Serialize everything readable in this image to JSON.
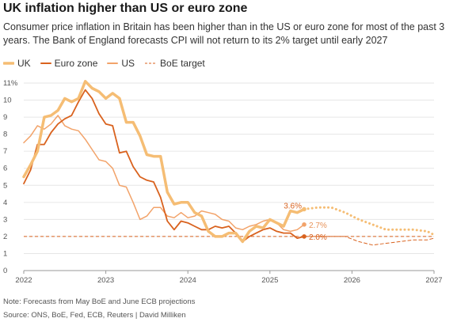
{
  "title": "UK inflation higher than US or euro zone",
  "subtitle": "Consumer price inflation in Britain has been higher than in the US or euro zone for most of the past 3 years. The Bank of England forecasts CPI will not return to its 2% target until early 2027",
  "note": "Note: Forecasts from May BoE and June ECB projections",
  "source": "Source: ONS, BoE, Fed, ECB, Reuters | David Milliken",
  "colors": {
    "uk": "#f5bd74",
    "ez": "#d9621e",
    "us": "#f2a36a",
    "target": "#d9621e",
    "grid": "#e6e6e6"
  },
  "legend": [
    {
      "label": "UK",
      "key": "uk"
    },
    {
      "label": "Euro zone",
      "key": "ez"
    },
    {
      "label": "US",
      "key": "us"
    },
    {
      "label": "BoE target",
      "key": "target"
    }
  ],
  "chart_data": {
    "type": "line",
    "xlim": [
      2022,
      2027
    ],
    "ylim": [
      0,
      11
    ],
    "x_ticks": [
      {
        "value": 2022,
        "label": "2022"
      },
      {
        "value": 2023,
        "label": "2023"
      },
      {
        "value": 2024,
        "label": "2024"
      },
      {
        "value": 2025,
        "label": "2025"
      },
      {
        "value": 2026,
        "label": "2026"
      },
      {
        "value": 2027,
        "label": "2027"
      }
    ],
    "y_ticks": [
      {
        "value": 0,
        "label": "0"
      },
      {
        "value": 1,
        "label": "1"
      },
      {
        "value": 2,
        "label": "2"
      },
      {
        "value": 3,
        "label": "3"
      },
      {
        "value": 4,
        "label": "4"
      },
      {
        "value": 5,
        "label": "5"
      },
      {
        "value": 6,
        "label": "6"
      },
      {
        "value": 7,
        "label": "7"
      },
      {
        "value": 8,
        "label": "8"
      },
      {
        "value": 9,
        "label": "9"
      },
      {
        "value": 10,
        "label": "10"
      },
      {
        "value": 11,
        "label": "11%"
      }
    ],
    "grid": true,
    "target": 2,
    "series": [
      {
        "name": "UK",
        "key": "uk",
        "x": [
          2022.0,
          2022.083,
          2022.167,
          2022.25,
          2022.333,
          2022.417,
          2022.5,
          2022.583,
          2022.667,
          2022.75,
          2022.833,
          2022.917,
          2023.0,
          2023.083,
          2023.167,
          2023.25,
          2023.333,
          2023.417,
          2023.5,
          2023.583,
          2023.667,
          2023.75,
          2023.833,
          2023.917,
          2024.0,
          2024.083,
          2024.167,
          2024.25,
          2024.333,
          2024.417,
          2024.5,
          2024.583,
          2024.667,
          2024.75,
          2024.833,
          2024.917,
          2025.0,
          2025.083,
          2025.167,
          2025.25,
          2025.333,
          2025.417
        ],
        "y": [
          5.5,
          6.2,
          7.0,
          9.0,
          9.1,
          9.4,
          10.1,
          9.9,
          10.1,
          11.1,
          10.7,
          10.5,
          10.1,
          10.4,
          10.1,
          8.7,
          8.7,
          7.9,
          6.8,
          6.7,
          6.7,
          4.6,
          3.9,
          4.0,
          4.0,
          3.4,
          3.2,
          2.3,
          2.0,
          2.0,
          2.2,
          2.2,
          1.7,
          2.3,
          2.6,
          2.5,
          3.0,
          2.8,
          2.6,
          3.5,
          3.4,
          3.6
        ]
      },
      {
        "name": "Euro zone",
        "key": "ez",
        "x": [
          2022.0,
          2022.083,
          2022.167,
          2022.25,
          2022.333,
          2022.417,
          2022.5,
          2022.583,
          2022.667,
          2022.75,
          2022.833,
          2022.917,
          2023.0,
          2023.083,
          2023.167,
          2023.25,
          2023.333,
          2023.417,
          2023.5,
          2023.583,
          2023.667,
          2023.75,
          2023.833,
          2023.917,
          2024.0,
          2024.083,
          2024.167,
          2024.25,
          2024.333,
          2024.417,
          2024.5,
          2024.583,
          2024.667,
          2024.75,
          2024.833,
          2024.917,
          2025.0,
          2025.083,
          2025.167,
          2025.25,
          2025.333,
          2025.417
        ],
        "y": [
          5.1,
          5.9,
          7.4,
          7.4,
          8.1,
          8.6,
          8.9,
          9.1,
          9.9,
          10.6,
          10.1,
          9.2,
          8.6,
          8.5,
          6.9,
          7.0,
          6.1,
          5.5,
          5.3,
          5.2,
          4.3,
          2.9,
          2.4,
          2.9,
          2.8,
          2.6,
          2.4,
          2.4,
          2.6,
          2.5,
          2.6,
          2.2,
          1.7,
          2.0,
          2.2,
          2.4,
          2.5,
          2.3,
          2.2,
          2.2,
          1.9,
          2.0
        ]
      },
      {
        "name": "US",
        "key": "us",
        "x": [
          2022.0,
          2022.083,
          2022.167,
          2022.25,
          2022.333,
          2022.417,
          2022.5,
          2022.583,
          2022.667,
          2022.75,
          2022.833,
          2022.917,
          2023.0,
          2023.083,
          2023.167,
          2023.25,
          2023.333,
          2023.417,
          2023.5,
          2023.583,
          2023.667,
          2023.75,
          2023.833,
          2023.917,
          2024.0,
          2024.083,
          2024.167,
          2024.25,
          2024.333,
          2024.417,
          2024.5,
          2024.583,
          2024.667,
          2024.75,
          2024.833,
          2024.917,
          2025.0,
          2025.083,
          2025.167,
          2025.25,
          2025.333,
          2025.417
        ],
        "y": [
          7.5,
          7.9,
          8.5,
          8.3,
          8.6,
          9.1,
          8.5,
          8.3,
          8.2,
          7.7,
          7.1,
          6.5,
          6.4,
          6.0,
          5.0,
          4.9,
          4.0,
          3.0,
          3.2,
          3.7,
          3.7,
          3.2,
          3.1,
          3.4,
          3.1,
          3.2,
          3.5,
          3.4,
          3.3,
          3.0,
          2.9,
          2.5,
          2.4,
          2.6,
          2.7,
          2.9,
          3.0,
          2.8,
          2.4,
          2.3,
          2.4,
          2.7
        ]
      }
    ],
    "forecasts": [
      {
        "key": "uk",
        "x": [
          2025.417,
          2025.583,
          2025.75,
          2025.917,
          2026.083,
          2026.25,
          2026.417,
          2026.583,
          2026.75,
          2026.917,
          2027.0
        ],
        "y": [
          3.6,
          3.7,
          3.7,
          3.4,
          3.0,
          2.7,
          2.4,
          2.4,
          2.4,
          2.3,
          2.1
        ]
      },
      {
        "key": "ez",
        "x": [
          2025.417,
          2025.583,
          2025.75,
          2025.917,
          2026.083,
          2026.25,
          2026.417,
          2026.583,
          2026.75,
          2026.917,
          2027.0
        ],
        "y": [
          2.0,
          2.0,
          2.0,
          2.0,
          1.7,
          1.5,
          1.6,
          1.7,
          1.8,
          1.8,
          1.9
        ]
      }
    ],
    "end_labels": [
      {
        "label": "3.6%",
        "key": "uk",
        "x": 2025.417,
        "y": 3.6
      },
      {
        "label": "2.7%",
        "key": "us",
        "x": 2025.417,
        "y": 2.7
      },
      {
        "label": "2.0%",
        "key": "ez",
        "x": 2025.417,
        "y": 2.0
      }
    ]
  }
}
